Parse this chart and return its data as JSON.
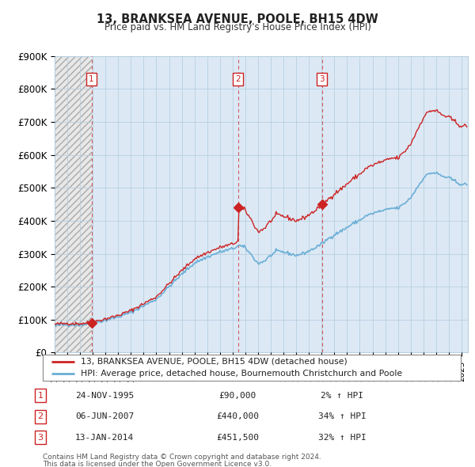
{
  "title": "13, BRANKSEA AVENUE, POOLE, BH15 4DW",
  "subtitle": "Price paid vs. HM Land Registry's House Price Index (HPI)",
  "legend_line1": "13, BRANKSEA AVENUE, POOLE, BH15 4DW (detached house)",
  "legend_line2": "HPI: Average price, detached house, Bournemouth Christchurch and Poole",
  "footer1": "Contains HM Land Registry data © Crown copyright and database right 2024.",
  "footer2": "This data is licensed under the Open Government Licence v3.0.",
  "table_rows": [
    [
      "1",
      "24-NOV-1995",
      "£90,000",
      "2% ↑ HPI"
    ],
    [
      "2",
      "06-JUN-2007",
      "£440,000",
      "34% ↑ HPI"
    ],
    [
      "3",
      "13-JAN-2014",
      "£451,500",
      "32% ↑ HPI"
    ]
  ],
  "hpi_color": "#6baed6",
  "price_color": "#cc2222",
  "plot_bg_color": "#dce9f5",
  "hatch_bg_color": "#e8e8e8",
  "grid_color": "#b8cfe0",
  "ylim": [
    0,
    900000
  ],
  "yticks": [
    0,
    100000,
    200000,
    300000,
    400000,
    500000,
    600000,
    700000,
    800000,
    900000
  ],
  "ytick_labels": [
    "£0",
    "£100K",
    "£200K",
    "£300K",
    "£400K",
    "£500K",
    "£600K",
    "£700K",
    "£800K",
    "£900K"
  ],
  "xlim_start": 1993.0,
  "xlim_end": 2025.5,
  "t1_year": 1995.9,
  "t2_year": 2007.42,
  "t3_year": 2014.04,
  "price1": 90000,
  "price2": 440000,
  "price3": 451500
}
